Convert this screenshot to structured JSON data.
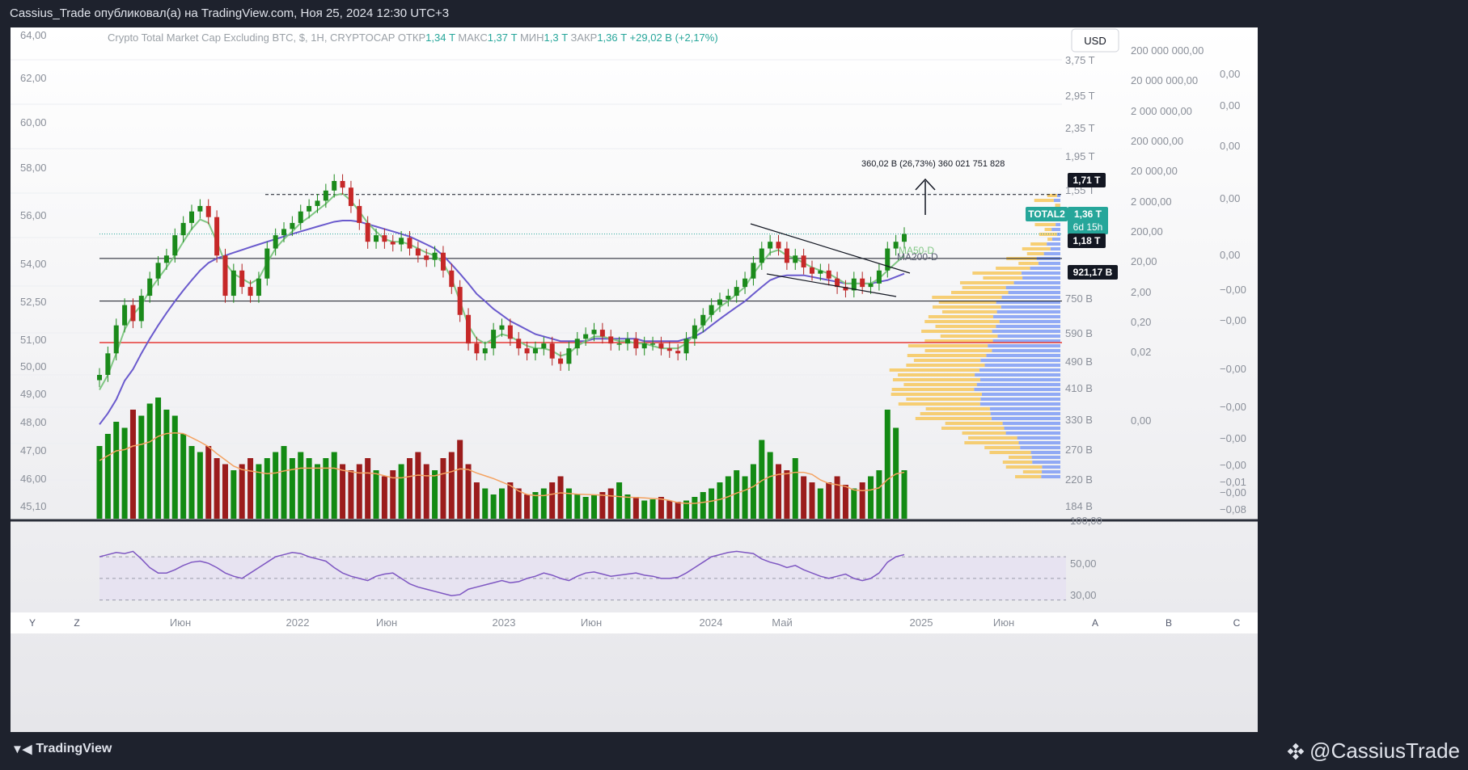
{
  "header": {
    "publish_line": "Cassius_Trade опубликовал(а) на TradingView.com, Ноя 25, 2024 12:30 UTC+3"
  },
  "legend": {
    "symbol": "Crypto Total Market Cap Excluding BTC, $, 1H, CRYPTOCAP",
    "open_label": "ОТКР",
    "open_value": "1,34 T",
    "high_label": "МАКС",
    "high_value": "1,37 T",
    "low_label": "МИН",
    "low_value": "1,3 T",
    "close_label": "ЗАКР",
    "close_value": "1,36 T",
    "change": "+29,02 B (+2,17%)"
  },
  "currency_button": "USD",
  "colors": {
    "up": "#1f7a1f",
    "down": "#b22222",
    "ma_fast": "#81c784",
    "ma_slow": "#6a5acd",
    "rsi": "#7e57c2",
    "support": "#e53935",
    "accent": "#26a69a"
  },
  "left_axis": [
    "64,00",
    "62,00",
    "60,00",
    "58,00",
    "56,00",
    "54,00",
    "52,50",
    "51,00",
    "50,00",
    "49,00",
    "48,00",
    "47,00",
    "46,00",
    "45,10"
  ],
  "right_axis_1": [
    "3,75 T",
    "2,95 T",
    "2,35 T",
    "1,95 T",
    "1,55 T",
    "750 B",
    "590 B",
    "490 B",
    "410 B",
    "330 B",
    "270 B",
    "220 B",
    "184 B"
  ],
  "right_axis_2": [
    "2 000 000 000,00",
    "200 000 000,00",
    "20 000 000,00",
    "2 000 000,00",
    "200 000,00",
    "20 000,00",
    "2 000,00",
    "200,00",
    "20,00",
    "2,00",
    "0,20",
    "0,02",
    "0,00"
  ],
  "right_axis_3": [
    "0,00",
    "0,00",
    "0,00",
    "0,00",
    "0,00",
    "0,00",
    "−0,00",
    "−0,00",
    "−0,00",
    "−0,00",
    "−0,00",
    "−0,00",
    "−0,00",
    "−0,01",
    "−0,08"
  ],
  "price_tags": {
    "high_target": "1,71 T",
    "current_symbol": "TOTAL2",
    "current_value": "1,36 T",
    "countdown": "6d 15h",
    "resistance": "1,18 T",
    "support": "921,17 B"
  },
  "measure_label": "360,02 B (26,73%) 360 021 751 828",
  "ma_labels": {
    "ma50": "MA50-D",
    "ma200": "MA200-D"
  },
  "rsi_axis": [
    "100,00",
    "50,00",
    "30,00"
  ],
  "time_axis": [
    "Июн",
    "2022",
    "Июн",
    "2023",
    "Июн",
    "2024",
    "Май",
    "2025",
    "Июн"
  ],
  "scale_buttons": [
    "Y",
    "Z",
    "A",
    "B",
    "C"
  ],
  "footer": {
    "brand": "TradingView",
    "author": "@CassiusTrade"
  },
  "chart_data": {
    "type": "candlestick",
    "title": "Crypto Total Market Cap Excluding BTC, $, 1H, CRYPTOCAP",
    "price_scale": "log",
    "key_levels_T": {
      "target": 1.71,
      "resistance": 1.18,
      "support": 0.92117,
      "current": 1.36
    },
    "close_T": [
      0.6,
      0.68,
      0.8,
      0.9,
      0.82,
      0.95,
      1.05,
      1.15,
      1.2,
      1.35,
      1.45,
      1.55,
      1.6,
      1.5,
      1.2,
      0.95,
      1.1,
      1.0,
      0.95,
      1.05,
      1.25,
      1.35,
      1.4,
      1.45,
      1.55,
      1.6,
      1.65,
      1.75,
      1.85,
      1.78,
      1.6,
      1.45,
      1.3,
      1.35,
      1.3,
      1.28,
      1.33,
      1.25,
      1.2,
      1.17,
      1.22,
      1.1,
      1.0,
      0.85,
      0.72,
      0.68,
      0.7,
      0.78,
      0.8,
      0.74,
      0.7,
      0.68,
      0.7,
      0.72,
      0.66,
      0.64,
      0.7,
      0.74,
      0.76,
      0.78,
      0.75,
      0.72,
      0.72,
      0.74,
      0.7,
      0.72,
      0.72,
      0.7,
      0.69,
      0.68,
      0.74,
      0.8,
      0.85,
      0.9,
      0.93,
      0.95,
      1.0,
      1.05,
      1.15,
      1.25,
      1.3,
      1.25,
      1.15,
      1.2,
      1.12,
      1.08,
      1.1,
      1.05,
      1.0,
      0.98,
      1.05,
      1.0,
      1.02,
      1.1,
      1.25,
      1.3,
      1.36
    ],
    "ma50_T": [
      0.55,
      0.6,
      0.68,
      0.78,
      0.85,
      0.9,
      0.98,
      1.05,
      1.12,
      1.2,
      1.3,
      1.4,
      1.48,
      1.45,
      1.3,
      1.15,
      1.08,
      1.05,
      1.02,
      1.05,
      1.15,
      1.25,
      1.32,
      1.38,
      1.45,
      1.5,
      1.56,
      1.62,
      1.7,
      1.72,
      1.65,
      1.55,
      1.45,
      1.38,
      1.32,
      1.3,
      1.3,
      1.28,
      1.25,
      1.22,
      1.2,
      1.15,
      1.05,
      0.92,
      0.8,
      0.74,
      0.72,
      0.74,
      0.76,
      0.75,
      0.73,
      0.71,
      0.7,
      0.7,
      0.69,
      0.67,
      0.68,
      0.71,
      0.73,
      0.75,
      0.75,
      0.74,
      0.73,
      0.73,
      0.72,
      0.72,
      0.71,
      0.7,
      0.7,
      0.7,
      0.72,
      0.76,
      0.8,
      0.85,
      0.89,
      0.92,
      0.96,
      1.0,
      1.08,
      1.15,
      1.22,
      1.24,
      1.2,
      1.18,
      1.15,
      1.12,
      1.1,
      1.08,
      1.05,
      1.02,
      1.02,
      1.02,
      1.02,
      1.05,
      1.1,
      1.15,
      1.2
    ],
    "ma200_T": [
      0.45,
      0.48,
      0.52,
      0.58,
      0.62,
      0.68,
      0.74,
      0.8,
      0.86,
      0.92,
      0.98,
      1.04,
      1.1,
      1.15,
      1.18,
      1.2,
      1.22,
      1.24,
      1.26,
      1.28,
      1.3,
      1.32,
      1.34,
      1.36,
      1.38,
      1.4,
      1.42,
      1.44,
      1.46,
      1.47,
      1.47,
      1.46,
      1.44,
      1.42,
      1.4,
      1.38,
      1.36,
      1.34,
      1.31,
      1.28,
      1.25,
      1.2,
      1.14,
      1.08,
      1.02,
      0.96,
      0.92,
      0.88,
      0.85,
      0.82,
      0.8,
      0.78,
      0.76,
      0.75,
      0.74,
      0.73,
      0.73,
      0.73,
      0.73,
      0.74,
      0.74,
      0.74,
      0.74,
      0.74,
      0.74,
      0.73,
      0.73,
      0.73,
      0.73,
      0.73,
      0.74,
      0.75,
      0.77,
      0.8,
      0.83,
      0.86,
      0.89,
      0.92,
      0.96,
      1.0,
      1.04,
      1.06,
      1.07,
      1.07,
      1.07,
      1.06,
      1.05,
      1.04,
      1.03,
      1.02,
      1.02,
      1.02,
      1.02,
      1.03,
      1.04,
      1.06,
      1.08
    ],
    "volume_rel": [
      0.6,
      0.7,
      0.8,
      0.75,
      0.9,
      0.85,
      0.95,
      1.0,
      0.9,
      0.85,
      0.7,
      0.6,
      0.55,
      0.6,
      0.5,
      0.45,
      0.4,
      0.45,
      0.5,
      0.45,
      0.5,
      0.55,
      0.6,
      0.5,
      0.55,
      0.5,
      0.45,
      0.5,
      0.55,
      0.45,
      0.4,
      0.45,
      0.5,
      0.4,
      0.35,
      0.4,
      0.45,
      0.5,
      0.55,
      0.45,
      0.4,
      0.5,
      0.55,
      0.65,
      0.45,
      0.3,
      0.25,
      0.2,
      0.25,
      0.3,
      0.25,
      0.2,
      0.22,
      0.25,
      0.3,
      0.35,
      0.25,
      0.2,
      0.18,
      0.2,
      0.22,
      0.25,
      0.3,
      0.2,
      0.18,
      0.15,
      0.16,
      0.18,
      0.15,
      0.14,
      0.15,
      0.18,
      0.22,
      0.25,
      0.3,
      0.35,
      0.4,
      0.35,
      0.45,
      0.65,
      0.55,
      0.45,
      0.4,
      0.5,
      0.35,
      0.3,
      0.25,
      0.3,
      0.35,
      0.28,
      0.25,
      0.3,
      0.35,
      0.4,
      0.9,
      0.75,
      0.4
    ],
    "rsi": [
      70,
      72,
      74,
      73,
      75,
      68,
      60,
      55,
      55,
      58,
      62,
      65,
      66,
      64,
      60,
      55,
      52,
      50,
      55,
      60,
      65,
      70,
      72,
      74,
      73,
      70,
      68,
      66,
      60,
      55,
      52,
      50,
      48,
      52,
      54,
      55,
      50,
      45,
      42,
      40,
      38,
      36,
      34,
      35,
      40,
      42,
      44,
      46,
      48,
      46,
      47,
      50,
      52,
      55,
      53,
      50,
      48,
      52,
      55,
      56,
      54,
      52,
      53,
      54,
      55,
      53,
      52,
      50,
      50,
      51,
      55,
      60,
      65,
      70,
      72,
      74,
      75,
      74,
      73,
      68,
      65,
      63,
      60,
      62,
      58,
      55,
      52,
      50,
      52,
      54,
      50,
      48,
      50,
      55,
      65,
      70,
      72
    ],
    "rsi_range": [
      20,
      100
    ],
    "annotations": [
      "MA50-D",
      "MA200-D",
      "360,02 B (26,73%) 360 021 751 828"
    ]
  }
}
